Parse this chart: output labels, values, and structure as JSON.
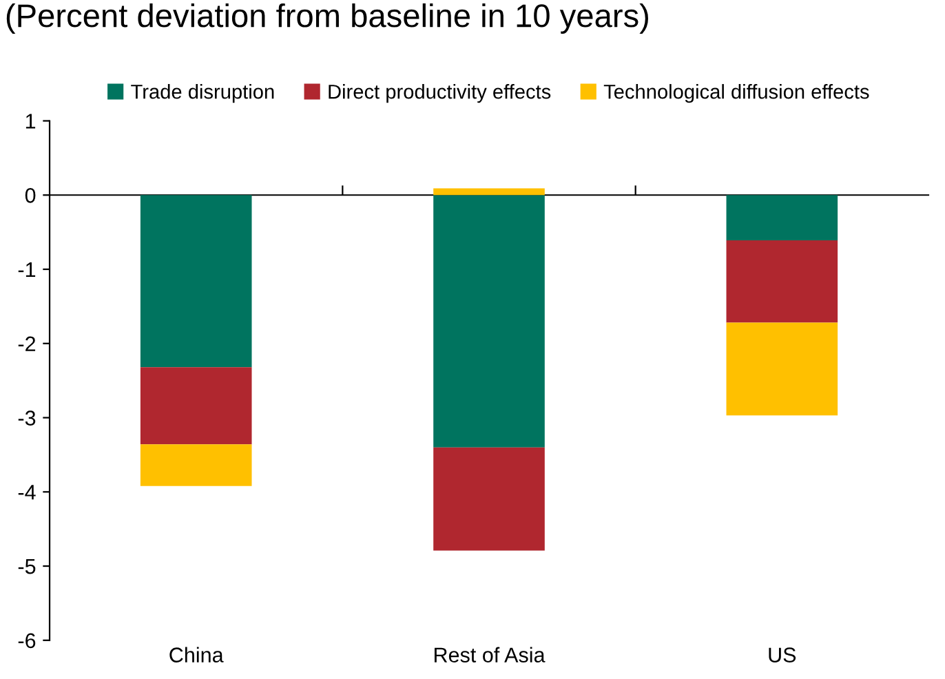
{
  "chart_data": {
    "type": "bar",
    "stacked": true,
    "title": "(Percent deviation from baseline in 10 years)",
    "categories": [
      "China",
      "Rest of Asia",
      "US"
    ],
    "series": [
      {
        "name": "Trade disruption",
        "color": "#00745f",
        "values": [
          -2.32,
          -3.4,
          -0.61
        ]
      },
      {
        "name": "Direct productivity effects",
        "color": "#b0272f",
        "values": [
          -1.04,
          -1.39,
          -1.11
        ]
      },
      {
        "name": "Technological diffusion effects",
        "color": "#ffc000",
        "values": [
          -0.56,
          0.09,
          -1.25
        ]
      }
    ],
    "ylim": [
      -6,
      1
    ],
    "yticks": [
      -6,
      -5,
      -4,
      -3,
      -2,
      -1,
      0,
      1
    ],
    "legend": "top"
  }
}
